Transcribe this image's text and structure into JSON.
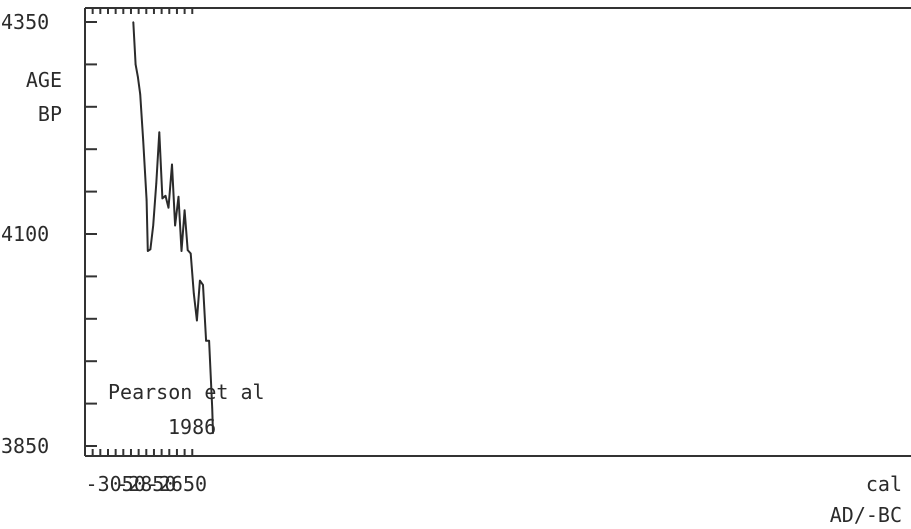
{
  "chart_data": {
    "type": "line",
    "title": "",
    "ylabel": [
      "AGE",
      "BP"
    ],
    "xlabel": [
      "cal",
      "AD/-BC"
    ],
    "annotation": [
      "Pearson et al",
      "1986"
    ],
    "xlim": [
      -3250,
      2140
    ],
    "ylim": [
      3850,
      4350
    ],
    "x_tick_labels": [
      {
        "value": -3050,
        "label": "-3050"
      },
      {
        "value": -2850,
        "label": "-2850"
      },
      {
        "value": -2650,
        "label": "-2650"
      }
    ],
    "y_tick_labels": [
      {
        "value": 4350,
        "label": "4350"
      },
      {
        "value": 4100,
        "label": "4100"
      },
      {
        "value": 3850,
        "label": "3850"
      }
    ],
    "x_minor_ticks": [
      -3200,
      -3150,
      -3100,
      -3050,
      -3000,
      -2950,
      -2900,
      -2850,
      -2800,
      -2750,
      -2700,
      -2650,
      -2600,
      -2550
    ],
    "y_minor_ticks": [
      4350,
      4300,
      4250,
      4200,
      4150,
      4100,
      4050,
      4000,
      3950,
      3900,
      3850
    ],
    "series": [
      {
        "values": [
          {
            "x": -2935,
            "y": 4350
          },
          {
            "x": -2920,
            "y": 4300
          },
          {
            "x": -2905,
            "y": 4285
          },
          {
            "x": -2890,
            "y": 4265
          },
          {
            "x": -2870,
            "y": 4210
          },
          {
            "x": -2848,
            "y": 4140
          },
          {
            "x": -2840,
            "y": 4080
          },
          {
            "x": -2823,
            "y": 4082
          },
          {
            "x": -2805,
            "y": 4110
          },
          {
            "x": -2785,
            "y": 4160
          },
          {
            "x": -2765,
            "y": 4220
          },
          {
            "x": -2745,
            "y": 4142
          },
          {
            "x": -2725,
            "y": 4145
          },
          {
            "x": -2705,
            "y": 4131
          },
          {
            "x": -2682,
            "y": 4182
          },
          {
            "x": -2662,
            "y": 4110
          },
          {
            "x": -2640,
            "y": 4144
          },
          {
            "x": -2620,
            "y": 4080
          },
          {
            "x": -2600,
            "y": 4128
          },
          {
            "x": -2580,
            "y": 4081
          },
          {
            "x": -2560,
            "y": 4077
          },
          {
            "x": -2540,
            "y": 4030
          },
          {
            "x": -2520,
            "y": 3998
          },
          {
            "x": -2500,
            "y": 4045
          },
          {
            "x": -2480,
            "y": 4040
          },
          {
            "x": -2460,
            "y": 3974
          },
          {
            "x": -2440,
            "y": 3974
          },
          {
            "x": -2420,
            "y": 3895
          },
          {
            "x": -2415,
            "y": 3865
          }
        ]
      }
    ]
  }
}
